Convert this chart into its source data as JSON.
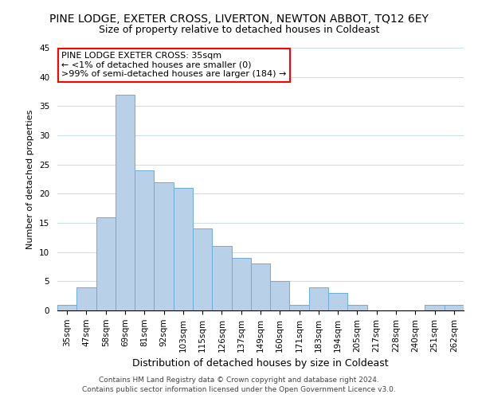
{
  "title": "PINE LODGE, EXETER CROSS, LIVERTON, NEWTON ABBOT, TQ12 6EY",
  "subtitle": "Size of property relative to detached houses in Coldeast",
  "xlabel": "Distribution of detached houses by size in Coldeast",
  "ylabel": "Number of detached properties",
  "bar_labels": [
    "35sqm",
    "47sqm",
    "58sqm",
    "69sqm",
    "81sqm",
    "92sqm",
    "103sqm",
    "115sqm",
    "126sqm",
    "137sqm",
    "149sqm",
    "160sqm",
    "171sqm",
    "183sqm",
    "194sqm",
    "205sqm",
    "217sqm",
    "228sqm",
    "240sqm",
    "251sqm",
    "262sqm"
  ],
  "bar_values": [
    1,
    4,
    16,
    37,
    24,
    22,
    21,
    14,
    11,
    9,
    8,
    5,
    1,
    4,
    3,
    1,
    0,
    0,
    0,
    1,
    1
  ],
  "bar_color": "#b8d0e8",
  "bar_edge_color": "#6baed6",
  "ylim": [
    0,
    45
  ],
  "yticks": [
    0,
    5,
    10,
    15,
    20,
    25,
    30,
    35,
    40,
    45
  ],
  "annotation_line1": "PINE LODGE EXETER CROSS: 35sqm",
  "annotation_line2": "← <1% of detached houses are smaller (0)",
  "annotation_line3": ">99% of semi-detached houses are larger (184) →",
  "footer_line1": "Contains HM Land Registry data © Crown copyright and database right 2024.",
  "footer_line2": "Contains public sector information licensed under the Open Government Licence v3.0.",
  "background_color": "#ffffff",
  "grid_color": "#ccddee",
  "title_fontsize": 10,
  "subtitle_fontsize": 9,
  "xlabel_fontsize": 9,
  "ylabel_fontsize": 8,
  "tick_fontsize": 7.5,
  "annotation_fontsize": 8,
  "footer_fontsize": 6.5
}
